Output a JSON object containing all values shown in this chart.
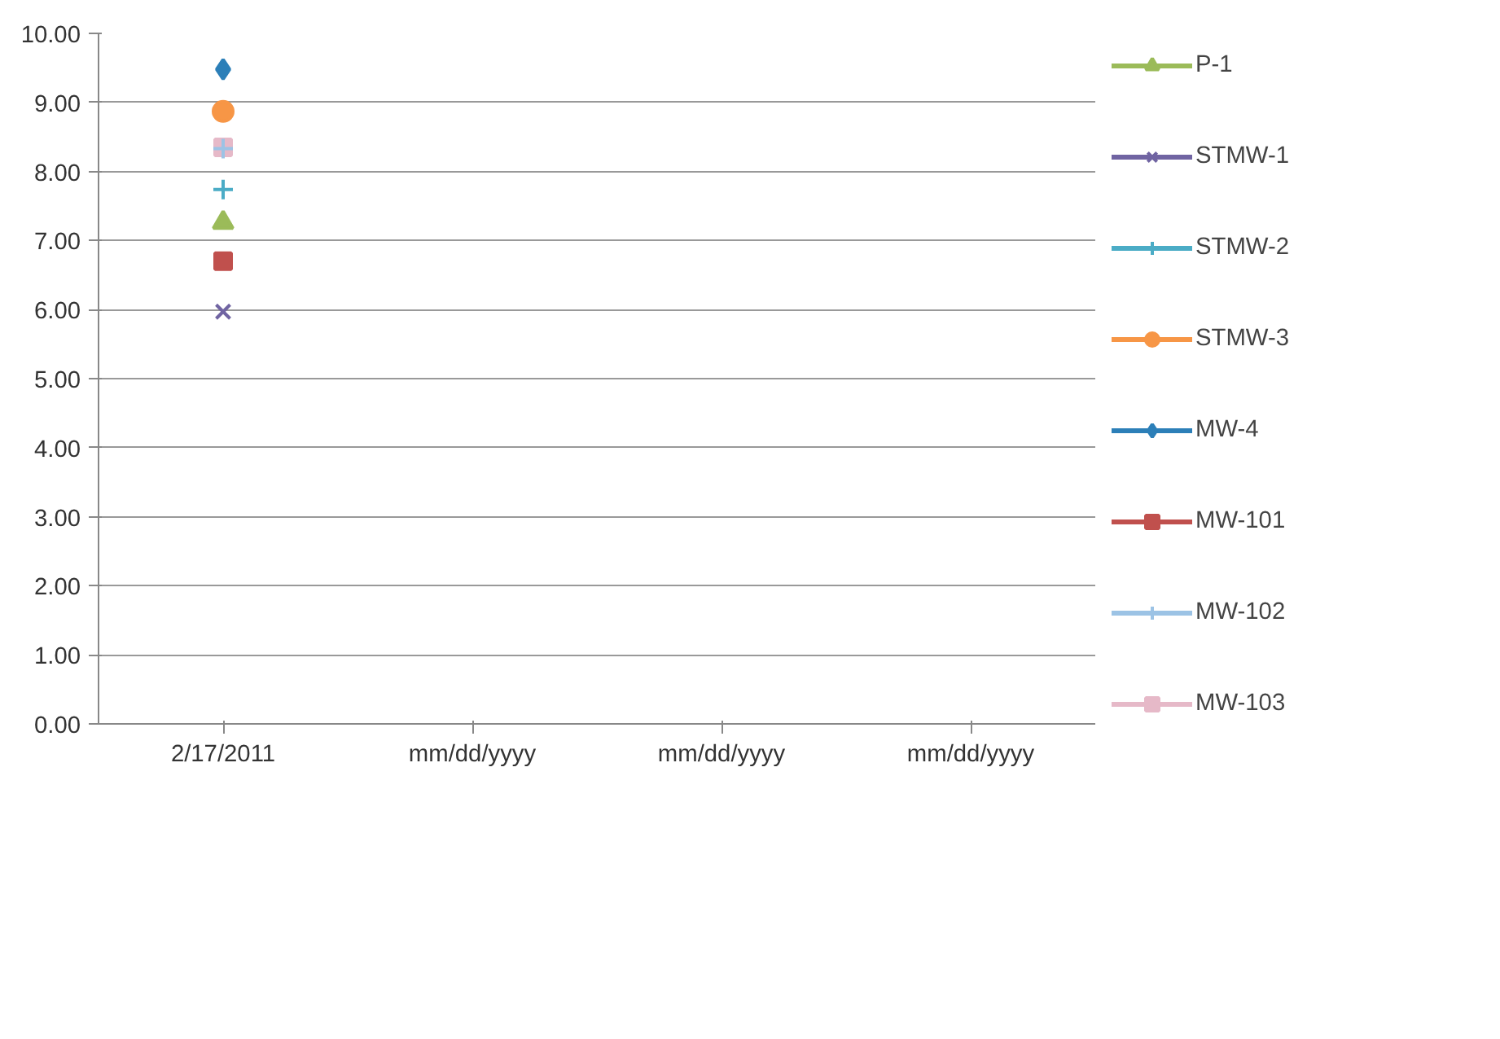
{
  "chart_data": {
    "type": "line",
    "categories": [
      "2/17/2011",
      "mm/dd/yyyy",
      "mm/dd/yyyy",
      "mm/dd/yyyy"
    ],
    "series": [
      {
        "name": "P-1",
        "color": "#9bbb59",
        "marker": "triangle",
        "values": [
          7.26,
          null,
          null,
          null
        ]
      },
      {
        "name": "STMW-1",
        "color": "#7064a2",
        "marker": "x",
        "values": [
          5.97,
          null,
          null,
          null
        ]
      },
      {
        "name": "STMW-2",
        "color": "#4bacc6",
        "marker": "cross",
        "values": [
          7.74,
          null,
          null,
          null
        ]
      },
      {
        "name": "STMW-3",
        "color": "#f79646",
        "marker": "circle",
        "values": [
          8.87,
          null,
          null,
          null
        ]
      },
      {
        "name": "MW-4",
        "color": "#2c7fb8",
        "marker": "diamond",
        "values": [
          9.48,
          null,
          null,
          null
        ]
      },
      {
        "name": "MW-101",
        "color": "#c0504d",
        "marker": "square",
        "values": [
          6.7,
          null,
          null,
          null
        ]
      },
      {
        "name": "MW-102",
        "color": "#9cc3e5",
        "marker": "cross",
        "values": [
          8.33,
          null,
          null,
          null
        ]
      },
      {
        "name": "MW-103",
        "color": "#e6b9c8",
        "marker": "square",
        "values": [
          8.35,
          null,
          null,
          null
        ]
      }
    ],
    "ylim": [
      0,
      10
    ],
    "yticks": [
      {
        "value": 0,
        "label": "0.00"
      },
      {
        "value": 1,
        "label": "1.00"
      },
      {
        "value": 2,
        "label": "2.00"
      },
      {
        "value": 3,
        "label": "3.00"
      },
      {
        "value": 4,
        "label": "4.00"
      },
      {
        "value": 5,
        "label": "5.00"
      },
      {
        "value": 6,
        "label": "6.00"
      },
      {
        "value": 7,
        "label": "7.00"
      },
      {
        "value": 8,
        "label": "8.00"
      },
      {
        "value": 9,
        "label": "9.00"
      },
      {
        "value": 10,
        "label": "10.00"
      }
    ],
    "grid": "y",
    "legend": "right"
  }
}
